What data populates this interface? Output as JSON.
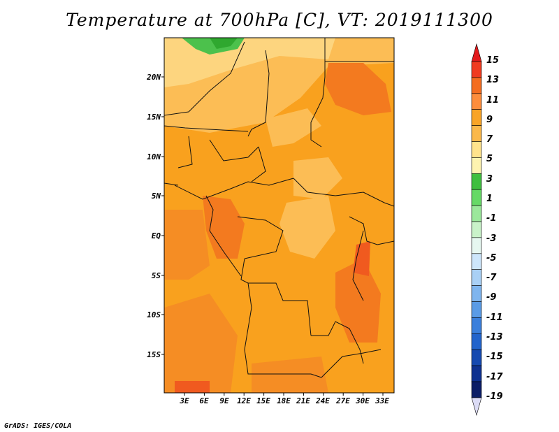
{
  "title": "Temperature at 700hPa [C], VT: 2019111300",
  "credit": "GrADS: IGES/COLA",
  "map": {
    "variable": "Temperature at 700hPa",
    "units": "C",
    "valid_time": "2019111300",
    "lat_labels": [
      "20N",
      "15N",
      "10N",
      "5N",
      "EQ",
      "5S",
      "10S",
      "15S"
    ],
    "lon_labels": [
      "3E",
      "6E",
      "9E",
      "12E",
      "15E",
      "18E",
      "21E",
      "24E",
      "27E",
      "30E",
      "33E"
    ]
  },
  "colorbar": {
    "labels": [
      "15",
      "13",
      "11",
      "9",
      "7",
      "5",
      "3",
      "1",
      "-1",
      "-3",
      "-5",
      "-7",
      "-9",
      "-11",
      "-13",
      "-15",
      "-17",
      "-19"
    ],
    "colors": [
      "#e31a1c",
      "#f03b20",
      "#f46d20",
      "#fd8d3c",
      "#f9a427",
      "#fbb84a",
      "#ffe38c",
      "#fdf3b0",
      "#3fbf3f",
      "#66d966",
      "#9be89b",
      "#c9f2c9",
      "#e6f7f0",
      "#cde6fb",
      "#a9d0f5",
      "#7fb5ee",
      "#5a9be6",
      "#3a7fdc",
      "#2264cc",
      "#1549b0",
      "#0e3190",
      "#0b1d66",
      "#dcdcf6"
    ]
  }
}
